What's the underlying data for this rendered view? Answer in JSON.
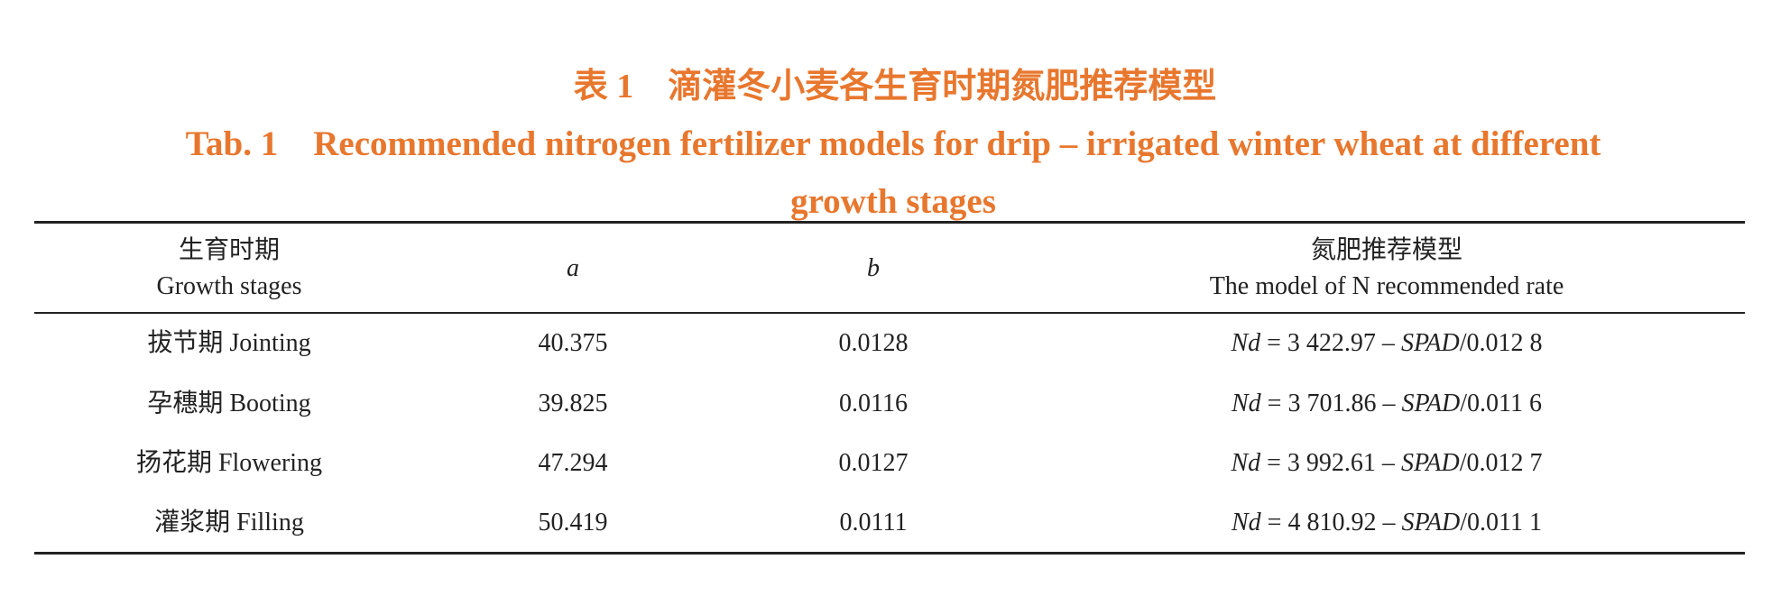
{
  "caption": {
    "title_cn": "表 1　滴灌冬小麦各生育时期氮肥推荐模型",
    "title_en": "Tab. 1　Recommended nitrogen fertilizer models for drip – irrigated winter wheat at different growth stages"
  },
  "table": {
    "header": [
      [
        "生育时期",
        "Growth stages"
      ],
      [
        "a"
      ],
      [
        "b"
      ],
      [
        "氮肥推荐模型",
        "The model of N recommended rate"
      ]
    ],
    "header_italic": [
      false,
      true,
      true,
      false
    ],
    "rows": [
      [
        "拔节期 Jointing",
        "40.375",
        "0.0128",
        [
          {
            "text": "Nd",
            "italic": true
          },
          {
            "text": " = 3 422.97 – ",
            "italic": false
          },
          {
            "text": "SPAD",
            "italic": true
          },
          {
            "text": "/0.012 8",
            "italic": false
          }
        ]
      ],
      [
        "孕穗期 Booting",
        "39.825",
        "0.0116",
        [
          {
            "text": "Nd",
            "italic": true
          },
          {
            "text": " = 3 701.86 – ",
            "italic": false
          },
          {
            "text": "SPAD",
            "italic": true
          },
          {
            "text": "/0.011 6",
            "italic": false
          }
        ]
      ],
      [
        "扬花期 Flowering",
        "47.294",
        "0.0127",
        [
          {
            "text": "Nd",
            "italic": true
          },
          {
            "text": " = 3 992.61 – ",
            "italic": false
          },
          {
            "text": "SPAD",
            "italic": true
          },
          {
            "text": "/0.012 7",
            "italic": false
          }
        ]
      ],
      [
        "灌浆期 Filling",
        "50.419",
        "0.0111",
        [
          {
            "text": "Nd",
            "italic": true
          },
          {
            "text": " = 4 810.92 – ",
            "italic": false
          },
          {
            "text": "SPAD",
            "italic": true
          },
          {
            "text": "/0.011 1",
            "italic": false
          }
        ]
      ]
    ]
  }
}
